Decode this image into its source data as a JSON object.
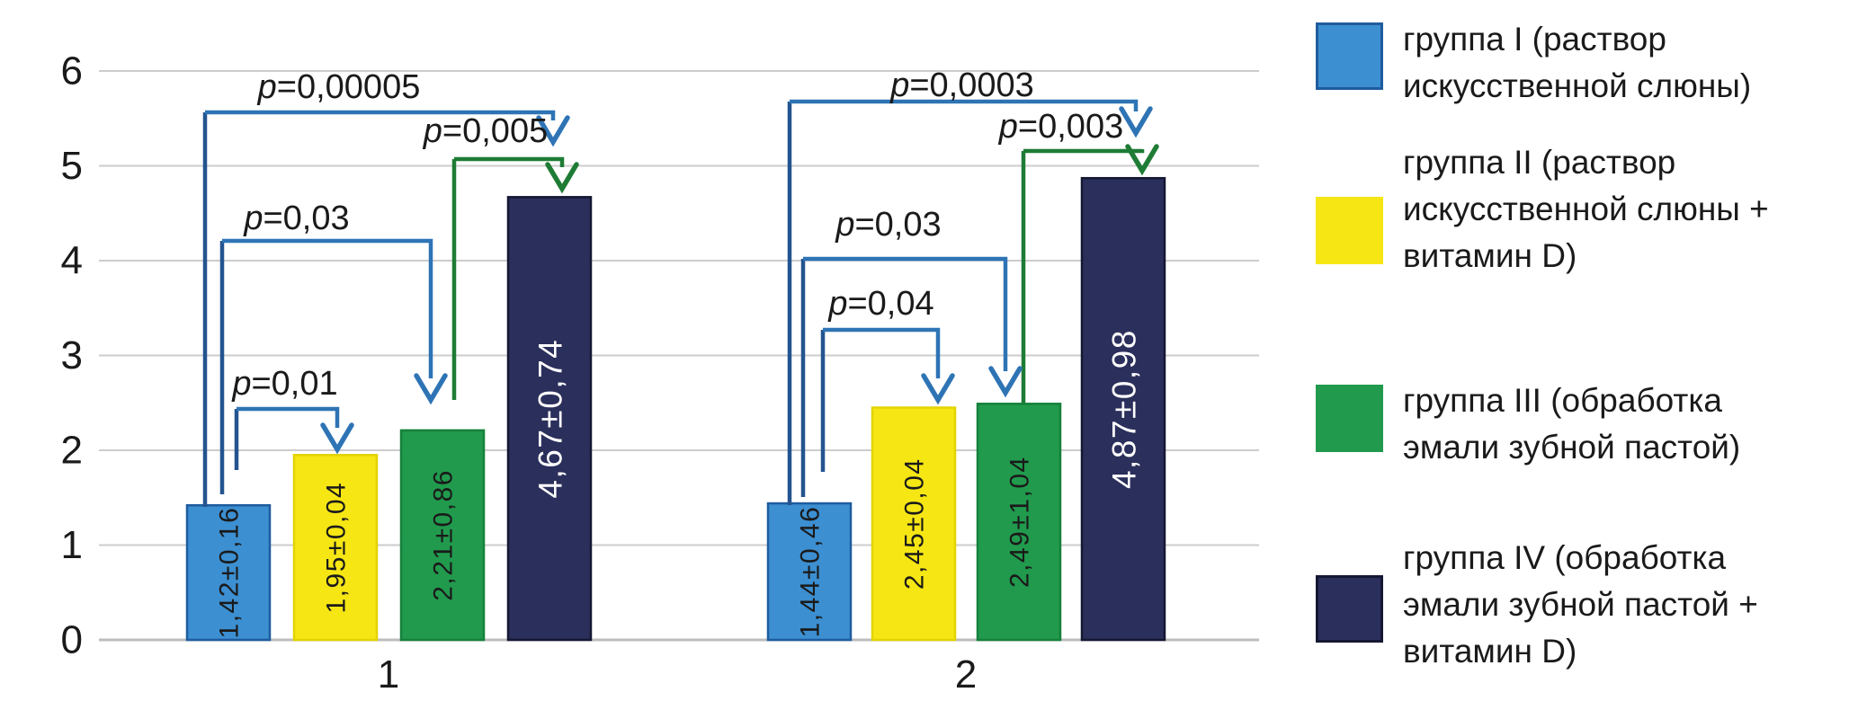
{
  "chart_data": {
    "type": "bar",
    "title": "",
    "categories": [
      "1",
      "2"
    ],
    "series": [
      {
        "name": "группа I (раствор искусственной слюны)",
        "color": "#3c8fd1",
        "border": "#1f5c9e",
        "label_color": "#1a1a1a",
        "values": [
          1.42,
          1.44
        ],
        "bar_labels": [
          "1,42±0,16",
          "1,44±0,46"
        ]
      },
      {
        "name": "группа II (раствор искусственной слюны + витамин D)",
        "color": "#f6e614",
        "border": "#e3d400",
        "label_color": "#1a1a1a",
        "values": [
          1.95,
          2.45
        ],
        "bar_labels": [
          "1,95±0,04",
          "2,45±0,04"
        ]
      },
      {
        "name": "группа III (обработка эмали зубной пастой)",
        "color": "#219a4d",
        "border": "#15813c",
        "label_color": "#1a1a1a",
        "values": [
          2.21,
          2.49
        ],
        "bar_labels": [
          "2,21±0,86",
          "2,49±1,04"
        ]
      },
      {
        "name": "группа IV (обработка эмали зубной пастой + витамин D)",
        "color": "#2b2f5b",
        "border": "#151833",
        "label_color": "#ffffff",
        "values": [
          4.67,
          4.87
        ],
        "bar_labels": [
          "4,67±0,74",
          "4,87±0,98"
        ]
      }
    ],
    "ylim": [
      0,
      6
    ],
    "yticks": [
      "0",
      "1",
      "2",
      "3",
      "4",
      "5",
      "6"
    ],
    "grid": true,
    "legend_position": "right",
    "annotations": [
      {
        "group": "1",
        "label": "p=0,00005",
        "from": "группа I",
        "to": "группа IV",
        "color": "blue"
      },
      {
        "group": "1",
        "label": "p=0,005",
        "from": "группа III",
        "to": "группа IV",
        "color": "green"
      },
      {
        "group": "1",
        "label": "p=0,03",
        "from": "группа I",
        "to": "группа III",
        "color": "blue"
      },
      {
        "group": "1",
        "label": "p=0,01",
        "from": "группа I",
        "to": "группа II",
        "color": "blue"
      },
      {
        "group": "2",
        "label": "p=0,0003",
        "from": "группа I",
        "to": "группа IV",
        "color": "blue"
      },
      {
        "group": "2",
        "label": "p=0,003",
        "from": "группа III",
        "to": "группа IV",
        "color": "green"
      },
      {
        "group": "2",
        "label": "p=0,03",
        "from": "группа I",
        "to": "группа III",
        "color": "blue"
      },
      {
        "group": "2",
        "label": "p=0,04",
        "from": "группа I",
        "to": "группа II",
        "color": "blue"
      }
    ]
  },
  "legend": {
    "items": [
      {
        "label": "группа I (раствор\nискусственной слюны)"
      },
      {
        "label": "группа II (раствор\nискусственной слюны +\nвитамин D)"
      },
      {
        "label": "группа III (обработка\nэмали зубной пастой)"
      },
      {
        "label": "группа IV (обработка\nэмали зубной пастой +\nвитамин D)"
      }
    ]
  },
  "colors": {
    "bracket_blue": "#2e74b5",
    "bracket_blue_leg": "#24548f",
    "bracket_green": "#1e7c35",
    "gridline": "#cccccc",
    "baseline": "#bdbdbd",
    "text": "#1a1a1a"
  }
}
